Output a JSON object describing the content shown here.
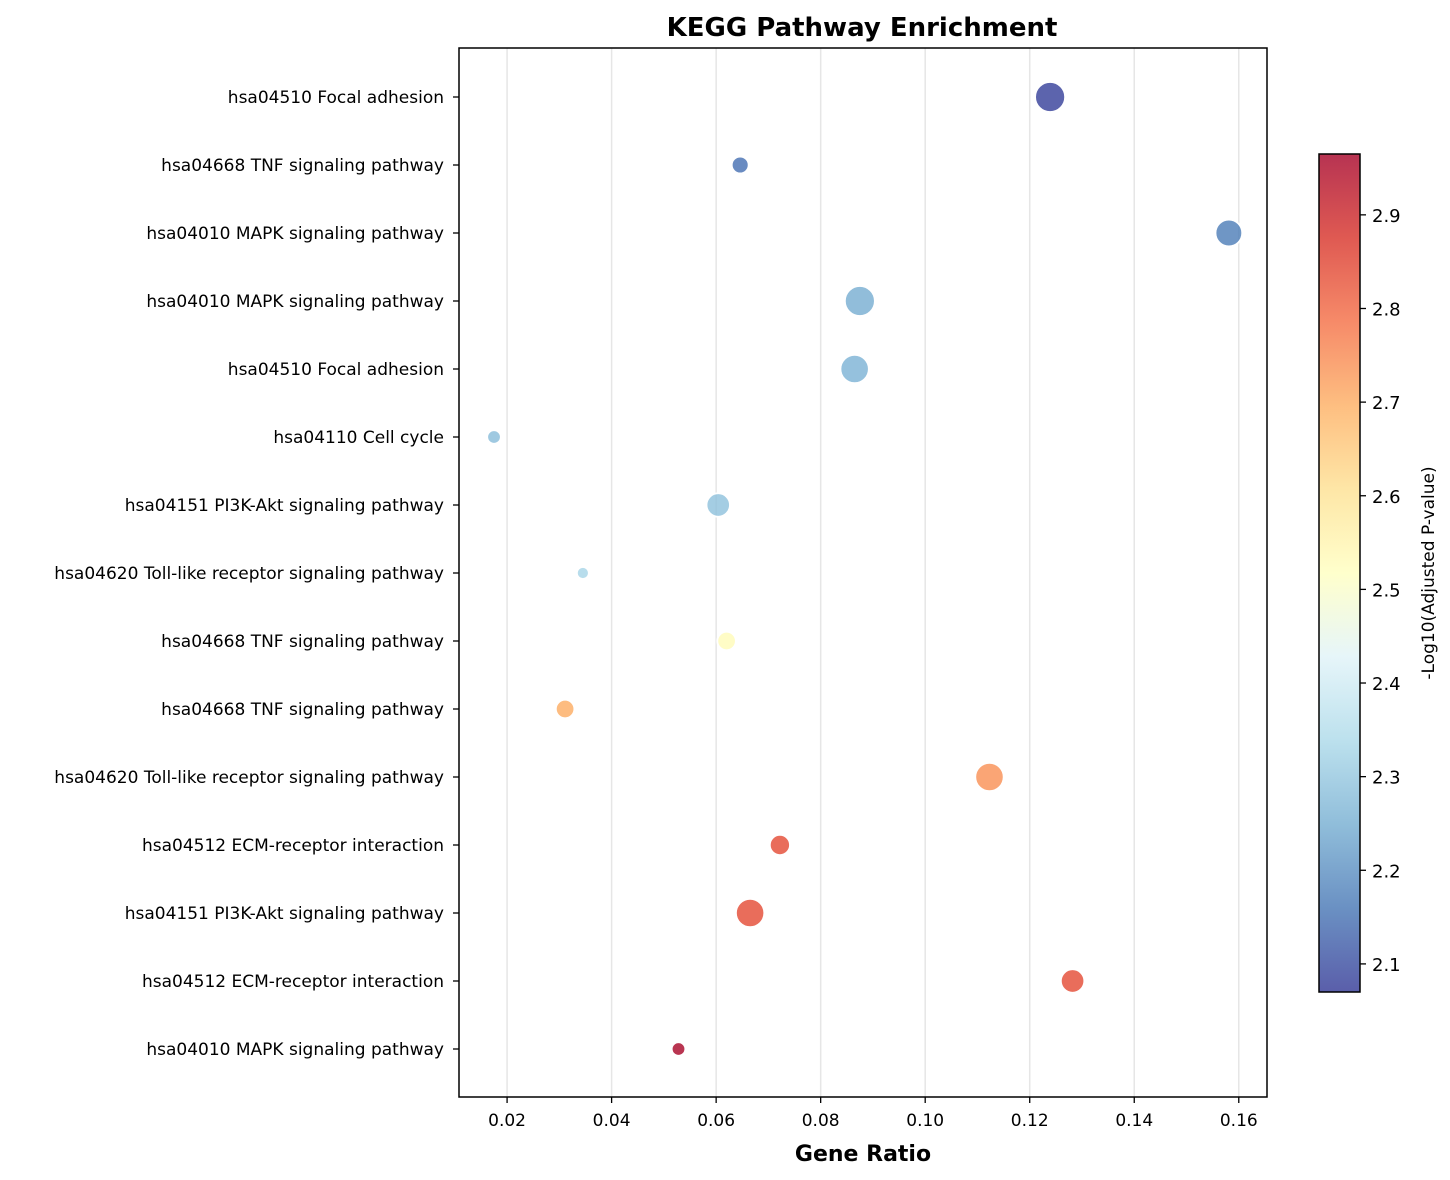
{
  "chart_data": {
    "type": "scatter",
    "title": "KEGG Pathway Enrichment",
    "xlabel": "Gene Ratio",
    "ylabel": "",
    "xlim": [
      0.0108,
      0.1654
    ],
    "x_ticks": [
      "0.02",
      "0.04",
      "0.06",
      "0.08",
      "0.10",
      "0.12",
      "0.14",
      "0.16"
    ],
    "x_tick_values": [
      0.02,
      0.04,
      0.06,
      0.08,
      0.1,
      0.12,
      0.14,
      0.16
    ],
    "grid": "vertical",
    "categories": [
      "hsa04510 Focal adhesion",
      "hsa04668 TNF signaling pathway",
      "hsa04010 MAPK signaling pathway",
      "hsa04010 MAPK signaling pathway",
      "hsa04510 Focal adhesion",
      "hsa04110 Cell cycle",
      "hsa04151 PI3K-Akt signaling pathway",
      "hsa04620 Toll-like receptor signaling pathway",
      "hsa04668 TNF signaling pathway",
      "hsa04668 TNF signaling pathway",
      "hsa04620 Toll-like receptor signaling pathway",
      "hsa04512 ECM-receptor interaction",
      "hsa04151 PI3K-Akt signaling pathway",
      "hsa04512 ECM-receptor interaction",
      "hsa04010 MAPK signaling pathway"
    ],
    "points": [
      {
        "x": 0.1239,
        "color_value": 2.08,
        "size": 16
      },
      {
        "x": 0.0646,
        "color_value": 2.15,
        "size": 8
      },
      {
        "x": 0.1581,
        "color_value": 2.17,
        "size": 14
      },
      {
        "x": 0.0875,
        "color_value": 2.25,
        "size": 16
      },
      {
        "x": 0.0865,
        "color_value": 2.26,
        "size": 15
      },
      {
        "x": 0.0175,
        "color_value": 2.28,
        "size": 6
      },
      {
        "x": 0.0604,
        "color_value": 2.29,
        "size": 12
      },
      {
        "x": 0.0345,
        "color_value": 2.33,
        "size": 5
      },
      {
        "x": 0.062,
        "color_value": 2.53,
        "size": 9
      },
      {
        "x": 0.0311,
        "color_value": 2.7,
        "size": 9
      },
      {
        "x": 0.1123,
        "color_value": 2.74,
        "size": 15
      },
      {
        "x": 0.0722,
        "color_value": 2.84,
        "size": 10
      },
      {
        "x": 0.0665,
        "color_value": 2.84,
        "size": 15
      },
      {
        "x": 0.1282,
        "color_value": 2.84,
        "size": 12
      },
      {
        "x": 0.0528,
        "color_value": 2.96,
        "size": 6
      }
    ],
    "colorbar": {
      "label": "-Log10(Adjusted P-value)",
      "range": [
        2.07,
        2.965
      ],
      "ticks": [
        "2.1",
        "2.2",
        "2.3",
        "2.4",
        "2.5",
        "2.6",
        "2.7",
        "2.8",
        "2.9"
      ],
      "tick_values": [
        2.1,
        2.2,
        2.3,
        2.4,
        2.5,
        2.6,
        2.7,
        2.8,
        2.9
      ],
      "colormap": [
        "#313695",
        "#4575b4",
        "#74add1",
        "#abd9e9",
        "#e0f3f8",
        "#ffffbf",
        "#fee090",
        "#fdae61",
        "#f46d43",
        "#d73027",
        "#a50026"
      ]
    }
  }
}
